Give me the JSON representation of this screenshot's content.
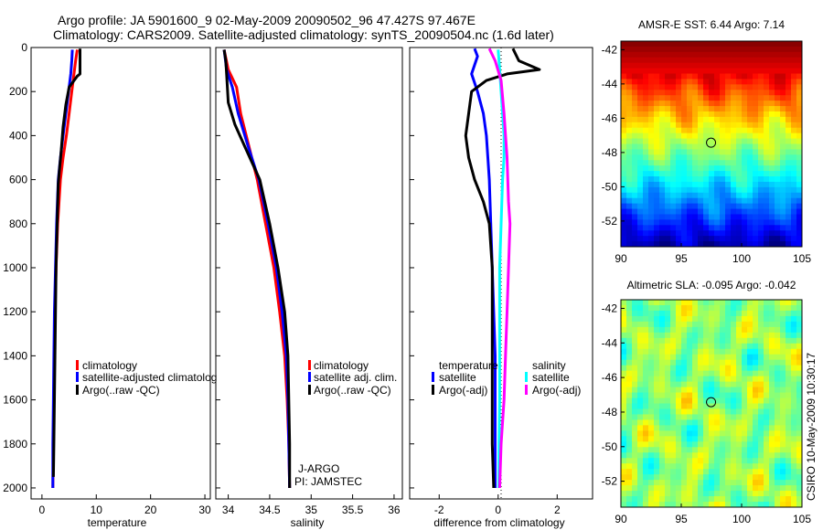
{
  "header": {
    "line1": "Argo profile: JA 5901600_9 02-May-2009 20090502_96 47.427S 97.467E",
    "line2": "Climatology: CARS2009. Satellite-adjusted climatology: synTS_20090504.nc (1.6d later)"
  },
  "side_text": "CSIRO 10-May-2009 10:30:17",
  "colors": {
    "climatology": "#ff0000",
    "satellite": "#0000ff",
    "argo": "#000000",
    "sat_sal": "#00ffff",
    "argo_sal": "#ff00ff"
  },
  "chart_data": [
    {
      "type": "line",
      "xlabel": "temperature",
      "ylabel": "",
      "xlim": [
        -2,
        31
      ],
      "ylim": [
        2050,
        0
      ],
      "xticks": [
        "0",
        "10",
        "20",
        "30"
      ],
      "yticks": [
        "0",
        "200",
        "400",
        "600",
        "800",
        "1000",
        "1200",
        "1400",
        "1600",
        "1800",
        "2000"
      ],
      "legend": {
        "placement": "lower-middle",
        "entries": [
          "climatology",
          "satellite-adjusted climatolog",
          "Argo(..raw -QC)"
        ]
      },
      "series": [
        {
          "name": "climatology",
          "color": "#ff0000",
          "points": [
            [
              6.5,
              10
            ],
            [
              6.2,
              60
            ],
            [
              5.9,
              120
            ],
            [
              5.5,
              200
            ],
            [
              5.0,
              300
            ],
            [
              4.5,
              400
            ],
            [
              3.9,
              500
            ],
            [
              3.4,
              600
            ],
            [
              2.9,
              800
            ],
            [
              2.6,
              1000
            ],
            [
              2.4,
              1200
            ],
            [
              2.3,
              1400
            ],
            [
              2.2,
              1600
            ],
            [
              2.1,
              1800
            ],
            [
              2.0,
              2000
            ]
          ]
        },
        {
          "name": "satellite-adjusted climatolog",
          "color": "#0000ff",
          "points": [
            [
              5.6,
              10
            ],
            [
              5.5,
              60
            ],
            [
              5.3,
              120
            ],
            [
              4.9,
              200
            ],
            [
              4.4,
              300
            ],
            [
              3.9,
              400
            ],
            [
              3.4,
              500
            ],
            [
              3.0,
              600
            ],
            [
              2.7,
              800
            ],
            [
              2.5,
              1000
            ],
            [
              2.3,
              1200
            ],
            [
              2.2,
              1400
            ],
            [
              2.1,
              1600
            ],
            [
              2.0,
              1800
            ],
            [
              2.0,
              2000
            ]
          ]
        },
        {
          "name": "Argo(..raw -QC)",
          "color": "#000000",
          "points": [
            [
              7.0,
              5
            ],
            [
              7.0,
              80
            ],
            [
              7.0,
              120
            ],
            [
              6.5,
              130
            ],
            [
              5.0,
              180
            ],
            [
              4.4,
              260
            ],
            [
              3.9,
              360
            ],
            [
              3.5,
              480
            ],
            [
              3.2,
              560
            ],
            [
              3.0,
              620
            ],
            [
              2.8,
              800
            ],
            [
              2.6,
              1000
            ],
            [
              2.5,
              1200
            ],
            [
              2.4,
              1400
            ],
            [
              2.3,
              1600
            ],
            [
              2.2,
              1800
            ],
            [
              2.1,
              1950
            ]
          ]
        }
      ]
    },
    {
      "type": "line",
      "xlabel": "salinity",
      "ylabel": "",
      "xlim": [
        33.85,
        36.1
      ],
      "ylim": [
        2050,
        0
      ],
      "xticks": [
        "34",
        "34.5",
        "35",
        "35.5",
        "36"
      ],
      "legend": {
        "placement": "lower-right",
        "entries": [
          "climatology",
          "satellite adj. clim.",
          "Argo(..raw -QC)"
        ]
      },
      "annotations": [
        "J-ARGO",
        "PI: JAMSTEC"
      ],
      "series": [
        {
          "name": "climatology",
          "color": "#ff0000",
          "points": [
            [
              33.95,
              10
            ],
            [
              34.0,
              100
            ],
            [
              34.1,
              180
            ],
            [
              34.15,
              300
            ],
            [
              34.25,
              450
            ],
            [
              34.35,
              600
            ],
            [
              34.45,
              800
            ],
            [
              34.55,
              1000
            ],
            [
              34.62,
              1200
            ],
            [
              34.68,
              1400
            ],
            [
              34.71,
              1600
            ],
            [
              34.73,
              1800
            ],
            [
              34.74,
              2000
            ]
          ]
        },
        {
          "name": "satellite adj. clim.",
          "color": "#0000ff",
          "points": [
            [
              33.95,
              10
            ],
            [
              33.98,
              100
            ],
            [
              34.05,
              180
            ],
            [
              34.12,
              300
            ],
            [
              34.24,
              450
            ],
            [
              34.37,
              600
            ],
            [
              34.48,
              800
            ],
            [
              34.58,
              1000
            ],
            [
              34.65,
              1200
            ],
            [
              34.7,
              1400
            ],
            [
              34.72,
              1600
            ],
            [
              34.73,
              1800
            ],
            [
              34.74,
              2000
            ]
          ]
        },
        {
          "name": "Argo(..raw -QC)",
          "color": "#000000",
          "points": [
            [
              33.95,
              10
            ],
            [
              33.97,
              60
            ],
            [
              33.98,
              120
            ],
            [
              34.0,
              250
            ],
            [
              34.08,
              350
            ],
            [
              34.2,
              450
            ],
            [
              34.38,
              600
            ],
            [
              34.5,
              800
            ],
            [
              34.6,
              1000
            ],
            [
              34.68,
              1200
            ],
            [
              34.72,
              1400
            ],
            [
              34.73,
              1600
            ],
            [
              34.74,
              1800
            ],
            [
              34.74,
              2000
            ]
          ]
        }
      ]
    },
    {
      "type": "line",
      "xlabel": "difference from climatology",
      "ylabel": "",
      "xlim": [
        -3,
        3.2
      ],
      "ylim": [
        2050,
        0
      ],
      "xticks": [
        "-2",
        "0",
        "2"
      ],
      "legend": {
        "placement": "lower-middle",
        "entries": [
          "temperature",
          "satellite",
          "Argo(-adj)",
          "salinity",
          "satellite",
          "Argo(-adj)"
        ]
      },
      "series": [
        {
          "name": "satellite",
          "color": "#0000ff",
          "points": [
            [
              -0.8,
              5
            ],
            [
              -0.7,
              40
            ],
            [
              -0.9,
              120
            ],
            [
              -0.7,
              200
            ],
            [
              -0.5,
              300
            ],
            [
              -0.4,
              400
            ],
            [
              -0.35,
              500
            ],
            [
              -0.3,
              600
            ],
            [
              -0.25,
              800
            ],
            [
              -0.2,
              1000
            ],
            [
              -0.15,
              1200
            ],
            [
              -0.1,
              1400
            ],
            [
              -0.1,
              1600
            ],
            [
              -0.1,
              1800
            ],
            [
              -0.1,
              2000
            ]
          ]
        },
        {
          "name": "Argo(-adj)",
          "color": "#000000",
          "points": [
            [
              0.5,
              5
            ],
            [
              0.7,
              60
            ],
            [
              1.4,
              100
            ],
            [
              0.3,
              120
            ],
            [
              -0.4,
              150
            ],
            [
              -0.9,
              200
            ],
            [
              -1.0,
              300
            ],
            [
              -1.1,
              400
            ],
            [
              -1.0,
              500
            ],
            [
              -0.8,
              600
            ],
            [
              -0.5,
              700
            ],
            [
              -0.3,
              800
            ],
            [
              -0.2,
              1000
            ],
            [
              -0.2,
              1200
            ],
            [
              -0.2,
              1400
            ],
            [
              -0.2,
              1600
            ],
            [
              -0.2,
              1800
            ],
            [
              -0.15,
              2000
            ]
          ]
        },
        {
          "name": "satellite",
          "color": "#00ffff",
          "points": [
            [
              0.0,
              10
            ],
            [
              0.05,
              100
            ],
            [
              0.1,
              200
            ],
            [
              0.15,
              300
            ],
            [
              0.2,
              400
            ],
            [
              0.2,
              500
            ],
            [
              0.15,
              600
            ],
            [
              0.1,
              800
            ],
            [
              0.05,
              1000
            ],
            [
              0.05,
              1200
            ],
            [
              0.05,
              1400
            ],
            [
              0.05,
              1600
            ],
            [
              0.03,
              1800
            ],
            [
              0.02,
              2000
            ]
          ]
        },
        {
          "name": "Argo(-adj)",
          "color": "#ff00ff",
          "points": [
            [
              -0.3,
              5
            ],
            [
              -0.1,
              60
            ],
            [
              0.1,
              150
            ],
            [
              0.2,
              300
            ],
            [
              0.3,
              500
            ],
            [
              0.35,
              700
            ],
            [
              0.4,
              800
            ],
            [
              0.35,
              1000
            ],
            [
              0.3,
              1200
            ],
            [
              0.25,
              1400
            ],
            [
              0.2,
              1600
            ],
            [
              0.1,
              1800
            ],
            [
              0.05,
              2000
            ]
          ]
        }
      ]
    },
    {
      "type": "heatmap",
      "title": "AMSR-E SST: 6.44 Argo: 7.14",
      "xlim": [
        90,
        105
      ],
      "ylim": [
        -53.5,
        -41.5
      ],
      "xticks": [
        "90",
        "95",
        "100",
        "105"
      ],
      "yticks": [
        "-42",
        "-44",
        "-46",
        "-48",
        "-50",
        "-52"
      ],
      "marker": {
        "x": 97.467,
        "y": -47.427
      }
    },
    {
      "type": "heatmap",
      "title": "Altimetric SLA: -0.095 Argo: -0.042",
      "xlim": [
        90,
        105
      ],
      "ylim": [
        -53.5,
        -41.5
      ],
      "xticks": [
        "90",
        "95",
        "100",
        "105"
      ],
      "yticks": [
        "-42",
        "-44",
        "-46",
        "-48",
        "-50",
        "-52"
      ],
      "marker": {
        "x": 97.467,
        "y": -47.427
      }
    }
  ]
}
